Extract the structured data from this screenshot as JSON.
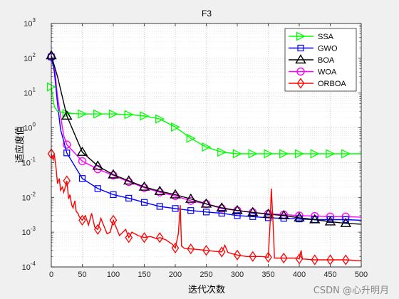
{
  "chart_data": {
    "type": "line",
    "title": "F3",
    "xlabel": "迭代次数",
    "ylabel": "适应度值",
    "xlim": [
      0,
      500
    ],
    "ylim": [
      0.0001,
      1000
    ],
    "yscale": "log",
    "grid": true,
    "legend_position": "top-right",
    "x_ticks": [
      0,
      50,
      100,
      150,
      200,
      250,
      300,
      350,
      400,
      450,
      500
    ],
    "y_ticks": [
      0.0001,
      0.001,
      0.01,
      0.1,
      1,
      10,
      100,
      1000
    ],
    "y_tick_exponents": [
      "-4",
      "-3",
      "-2",
      "-1",
      "0",
      "1",
      "2",
      "3"
    ],
    "series": [
      {
        "name": "SSA",
        "color": "#00ff00",
        "marker": "triangle-right",
        "x": [
          0,
          5,
          10,
          25,
          50,
          75,
          100,
          125,
          150,
          175,
          200,
          225,
          250,
          275,
          300,
          325,
          350,
          375,
          400,
          425,
          450,
          475,
          500
        ],
        "y": [
          15,
          4,
          3,
          2.6,
          2.5,
          2.5,
          2.5,
          2.4,
          2.2,
          1.8,
          1.05,
          0.5,
          0.28,
          0.2,
          0.18,
          0.18,
          0.18,
          0.18,
          0.18,
          0.18,
          0.18,
          0.18,
          0.18
        ]
      },
      {
        "name": "GWO",
        "color": "#0000ff",
        "marker": "square",
        "x": [
          0,
          5,
          10,
          15,
          25,
          50,
          75,
          100,
          125,
          150,
          175,
          200,
          225,
          250,
          275,
          300,
          325,
          350,
          375,
          400,
          425,
          450,
          475,
          500
        ],
        "y": [
          110,
          40,
          5,
          0.9,
          0.19,
          0.035,
          0.018,
          0.012,
          0.0095,
          0.0072,
          0.0055,
          0.0048,
          0.0042,
          0.0038,
          0.0035,
          0.003,
          0.0028,
          0.0026,
          0.0025,
          0.0024,
          0.0023,
          0.0023,
          0.0023,
          0.0022
        ]
      },
      {
        "name": "BOA",
        "color": "#000000",
        "marker": "triangle-up",
        "x": [
          0,
          10,
          25,
          50,
          75,
          100,
          125,
          150,
          175,
          200,
          225,
          250,
          275,
          300,
          325,
          350,
          375,
          400,
          425,
          450,
          475,
          500
        ],
        "y": [
          120,
          30,
          2.2,
          0.2,
          0.08,
          0.045,
          0.03,
          0.02,
          0.015,
          0.012,
          0.009,
          0.0065,
          0.005,
          0.0042,
          0.0037,
          0.0033,
          0.003,
          0.0026,
          0.0023,
          0.002,
          0.0018,
          0.0017
        ]
      },
      {
        "name": "WOA",
        "color": "#ff00ff",
        "marker": "circle",
        "x": [
          0,
          5,
          10,
          20,
          25,
          50,
          75,
          100,
          125,
          150,
          175,
          200,
          225,
          250,
          275,
          300,
          325,
          350,
          375,
          400,
          425,
          450,
          475,
          500
        ],
        "y": [
          110,
          60,
          8,
          0.6,
          0.33,
          0.11,
          0.065,
          0.043,
          0.028,
          0.019,
          0.014,
          0.011,
          0.008,
          0.0065,
          0.0048,
          0.0042,
          0.0037,
          0.0034,
          0.0032,
          0.003,
          0.0029,
          0.0028,
          0.0028,
          0.0027
        ]
      },
      {
        "name": "ORBOA",
        "color": "#ff0000",
        "marker": "diamond",
        "x": [
          0,
          3,
          5,
          8,
          10,
          13,
          15,
          18,
          20,
          22,
          25,
          28,
          30,
          33,
          35,
          38,
          40,
          43,
          45,
          50,
          55,
          60,
          65,
          70,
          75,
          80,
          85,
          90,
          95,
          100,
          110,
          120,
          125,
          130,
          140,
          150,
          160,
          170,
          175,
          185,
          195,
          200,
          205,
          208,
          210,
          215,
          225,
          235,
          250,
          265,
          275,
          280,
          285,
          300,
          315,
          325,
          340,
          350,
          353,
          355,
          358,
          360,
          375,
          395,
          400,
          403,
          405,
          425,
          450,
          475,
          500
        ],
        "y": [
          0.18,
          0.12,
          0.17,
          0.06,
          0.025,
          0.035,
          0.016,
          0.02,
          0.014,
          0.018,
          0.03,
          0.009,
          0.012,
          0.006,
          0.005,
          0.008,
          0.004,
          0.0035,
          0.0028,
          0.0022,
          0.003,
          0.0016,
          0.0035,
          0.0014,
          0.0012,
          0.0025,
          0.0015,
          0.0009,
          0.001,
          0.0022,
          0.0008,
          0.0012,
          0.0007,
          0.001,
          0.0008,
          0.0007,
          0.00075,
          0.00065,
          0.0007,
          0.0006,
          0.00045,
          0.00035,
          0.0009,
          0.006,
          0.0004,
          0.00034,
          0.00033,
          0.00032,
          0.0003,
          0.00028,
          0.00027,
          0.00042,
          0.00026,
          0.00022,
          0.0002,
          0.0002,
          0.0002,
          0.00019,
          0.0018,
          0.018,
          0.0014,
          0.00018,
          0.00018,
          0.00018,
          0.00017,
          0.0003,
          0.00017,
          0.00016,
          0.00016,
          0.00016,
          0.00015
        ]
      }
    ]
  },
  "watermark": "CSDN @心升明月"
}
